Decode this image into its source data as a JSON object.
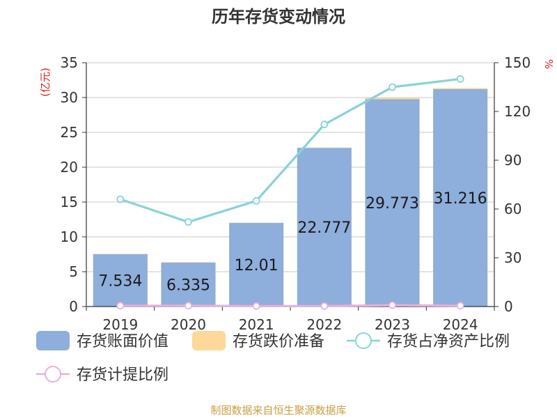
{
  "chart_data": {
    "type": "bar",
    "title": "历年存货变动情况",
    "categories": [
      "2019",
      "2020",
      "2021",
      "2022",
      "2023",
      "2024"
    ],
    "left_axis": {
      "unit": "(亿元)",
      "ylim": [
        0,
        35
      ],
      "ticks": [
        0,
        5,
        10,
        15,
        20,
        25,
        30,
        35
      ]
    },
    "right_axis": {
      "unit": "%",
      "ylim": [
        0,
        150
      ],
      "ticks": [
        0,
        30,
        60,
        90,
        120,
        150
      ]
    },
    "series": [
      {
        "name": "存货账面价值",
        "kind": "bar",
        "axis": "left",
        "color": "#8eaedb",
        "values": [
          7.534,
          6.335,
          12.01,
          22.777,
          29.773,
          31.216
        ],
        "labels": [
          "7.534",
          "6.335",
          "12.01",
          "22.777",
          "29.773",
          "31.216"
        ]
      },
      {
        "name": "存货跌价准备",
        "kind": "bar-stacked",
        "axis": "left",
        "color": "#fcd89a",
        "values": [
          0.03,
          0.03,
          0.03,
          0.05,
          0.25,
          0.15
        ]
      },
      {
        "name": "存货占净资产比例",
        "kind": "line",
        "axis": "right",
        "color": "#86d3d9",
        "values": [
          66,
          52,
          65,
          112,
          135,
          140
        ]
      },
      {
        "name": "存货计提比例",
        "kind": "line",
        "axis": "right",
        "color": "#e7b0d8",
        "values": [
          0.5,
          0.5,
          0.3,
          0.3,
          0.8,
          0.5
        ]
      }
    ],
    "grid": true,
    "legend": "bottom"
  },
  "source": "制图数据来自恒生聚源数据库"
}
